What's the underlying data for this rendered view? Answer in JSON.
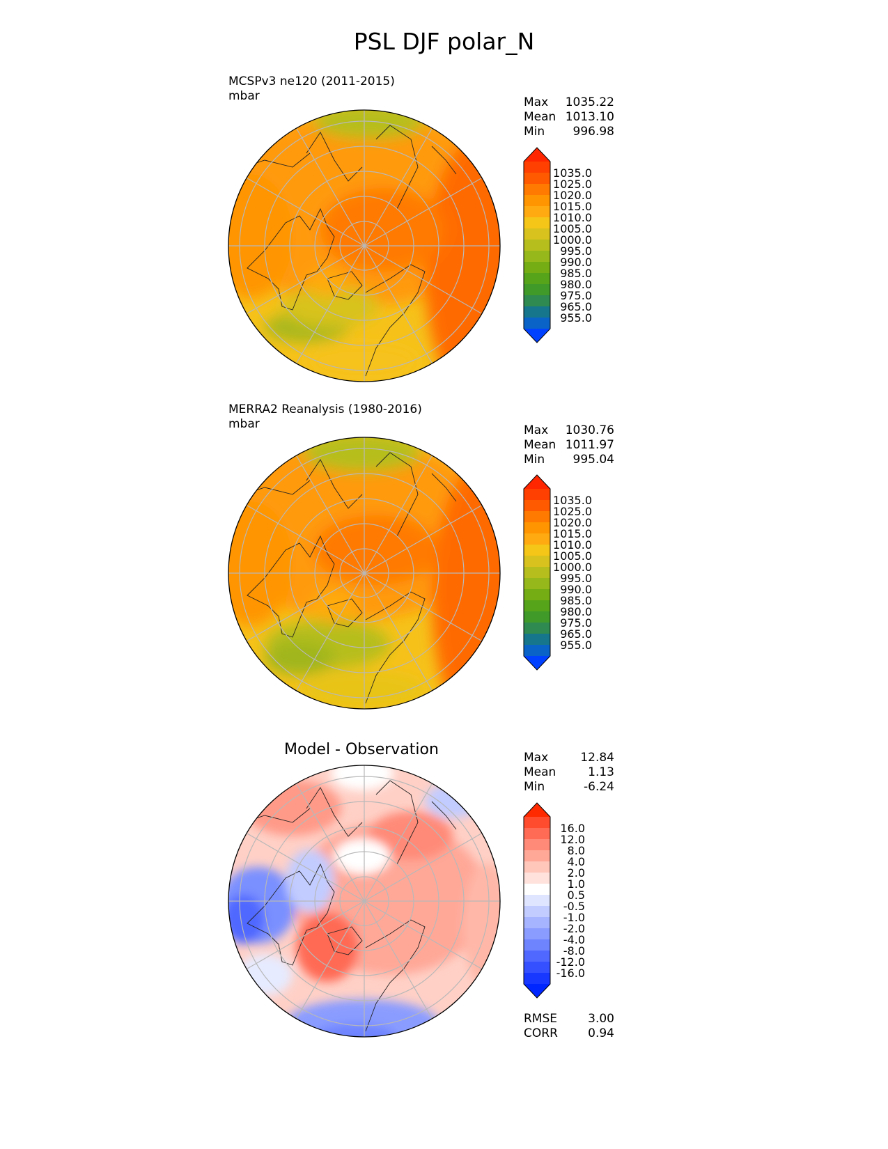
{
  "title": "PSL DJF polar_N",
  "panels": [
    {
      "id": "model",
      "title": "MCSPv3 ne120 (2011-2015)",
      "units": "mbar",
      "stats": [
        {
          "label": "Max",
          "value": "1035.22"
        },
        {
          "label": "Mean",
          "value": "1013.10"
        },
        {
          "label": "Min",
          "value": "996.98"
        }
      ]
    },
    {
      "id": "obs",
      "title": "MERRA2 Reanalysis (1980-2016)",
      "units": "mbar",
      "stats": [
        {
          "label": "Max",
          "value": "1030.76"
        },
        {
          "label": "Mean",
          "value": "1011.97"
        },
        {
          "label": "Min",
          "value": "995.04"
        }
      ]
    },
    {
      "id": "diff",
      "title": "Model - Observation",
      "stats": [
        {
          "label": "Max",
          "value": "12.84"
        },
        {
          "label": "Mean",
          "value": "1.13"
        },
        {
          "label": "Min",
          "value": "-6.24"
        }
      ],
      "metrics": [
        {
          "label": "RMSE",
          "value": "3.00"
        },
        {
          "label": "CORR",
          "value": "0.94"
        }
      ]
    }
  ],
  "chart_data": [
    {
      "type": "heatmap",
      "projection": "north-polar-stereographic",
      "title": "MCSPv3 ne120 (2011-2015)",
      "units": "mbar",
      "colorbar": {
        "extend": "both",
        "tick_labels": [
          "1035.0",
          "1025.0",
          "1020.0",
          "1015.0",
          "1010.0",
          "1005.0",
          "1000.0",
          "995.0",
          "990.0",
          "985.0",
          "980.0",
          "975.0",
          "965.0",
          "955.0"
        ],
        "colors": [
          "#ff2600",
          "#ff4000",
          "#ff5a00",
          "#ff7a00",
          "#ff9500",
          "#ffaa10",
          "#f5c518",
          "#d8c21e",
          "#b6be1e",
          "#96b81a",
          "#74ad14",
          "#56a41a",
          "#3f9a2a",
          "#2e8a50",
          "#16768c",
          "#0a64c8",
          "#0040ff"
        ]
      },
      "stats": {
        "max": 1035.22,
        "mean": 1013.1,
        "min": 996.98
      }
    },
    {
      "type": "heatmap",
      "projection": "north-polar-stereographic",
      "title": "MERRA2 Reanalysis (1980-2016)",
      "units": "mbar",
      "colorbar": {
        "extend": "both",
        "tick_labels": [
          "1035.0",
          "1025.0",
          "1020.0",
          "1015.0",
          "1010.0",
          "1005.0",
          "1000.0",
          "995.0",
          "990.0",
          "985.0",
          "980.0",
          "975.0",
          "965.0",
          "955.0"
        ],
        "colors": [
          "#ff2600",
          "#ff4000",
          "#ff5a00",
          "#ff7a00",
          "#ff9500",
          "#ffaa10",
          "#f5c518",
          "#d8c21e",
          "#b6be1e",
          "#96b81a",
          "#74ad14",
          "#56a41a",
          "#3f9a2a",
          "#2e8a50",
          "#16768c",
          "#0a64c8",
          "#0040ff"
        ]
      },
      "stats": {
        "max": 1030.76,
        "mean": 1011.97,
        "min": 995.04
      }
    },
    {
      "type": "heatmap",
      "projection": "north-polar-stereographic",
      "title": "Model - Observation",
      "colorbar": {
        "extend": "both",
        "tick_labels": [
          "16.0",
          "12.0",
          "8.0",
          "4.0",
          "2.0",
          "1.0",
          "0.5",
          "-0.5",
          "-1.0",
          "-2.0",
          "-4.0",
          "-8.0",
          "-12.0",
          "-16.0"
        ],
        "colors": [
          "#ff2a00",
          "#ff4b2e",
          "#ff6b55",
          "#ff8a78",
          "#ffa898",
          "#ffc6ba",
          "#ffe2dc",
          "#ffffff",
          "#dfe4ff",
          "#c2ccff",
          "#a6b4ff",
          "#8a9cff",
          "#6e84ff",
          "#5068ff",
          "#3450ff",
          "#1838ff",
          "#0026ff"
        ]
      },
      "stats": {
        "max": 12.84,
        "mean": 1.13,
        "min": -6.24
      },
      "rmse": 3.0,
      "corr": 0.94
    }
  ]
}
